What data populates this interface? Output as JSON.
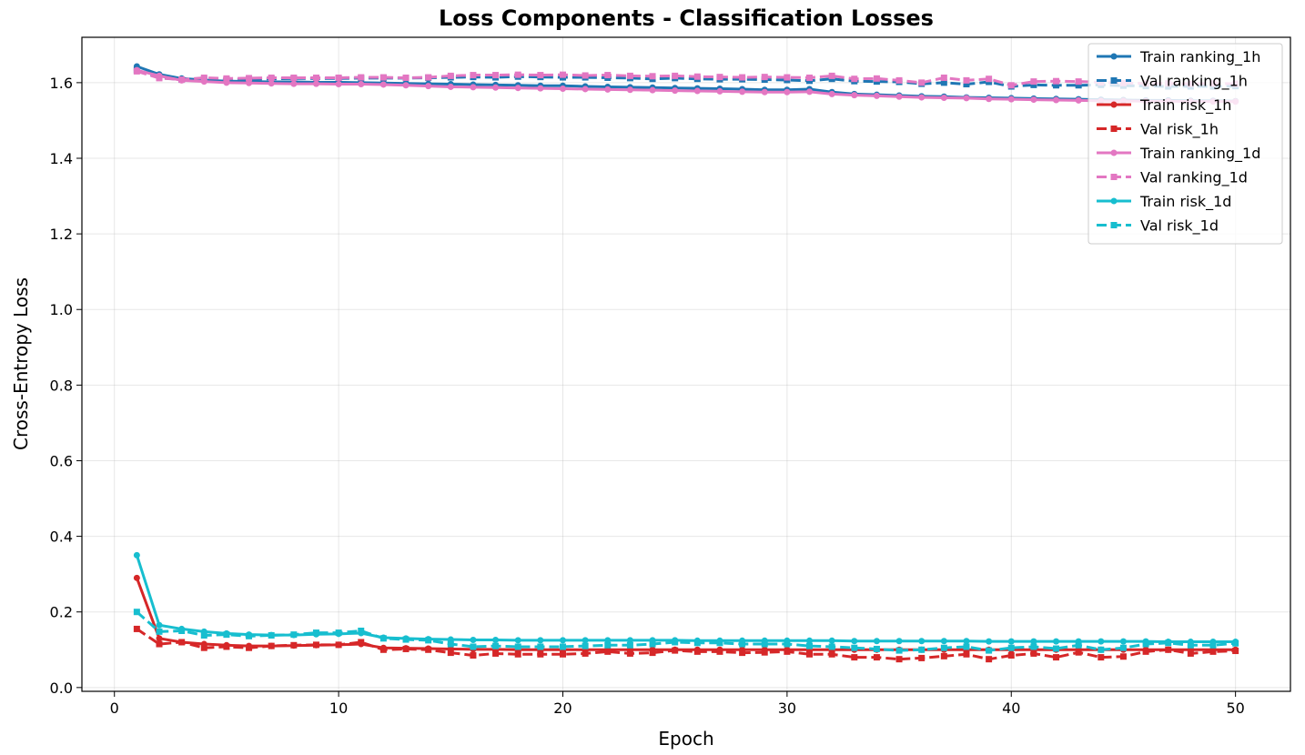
{
  "chart_data": {
    "type": "line",
    "title": "Loss Components - Classification Losses",
    "xlabel": "Epoch",
    "ylabel": "Cross-Entropy Loss",
    "xlim": [
      -1.45,
      52.45
    ],
    "ylim": [
      -0.01,
      1.72
    ],
    "xticks": [
      0,
      10,
      20,
      30,
      40,
      50
    ],
    "yticks": [
      0.0,
      0.2,
      0.4,
      0.6,
      0.8,
      1.0,
      1.2,
      1.4,
      1.6
    ],
    "ytick_labels": [
      "0.0",
      "0.2",
      "0.4",
      "0.6",
      "0.8",
      "1.0",
      "1.2",
      "1.4",
      "1.6"
    ],
    "grid": true,
    "legend_position": "top-right",
    "x": [
      1,
      2,
      3,
      4,
      5,
      6,
      7,
      8,
      9,
      10,
      11,
      12,
      13,
      14,
      15,
      16,
      17,
      18,
      19,
      20,
      21,
      22,
      23,
      24,
      25,
      26,
      27,
      28,
      29,
      30,
      31,
      32,
      33,
      34,
      35,
      36,
      37,
      38,
      39,
      40,
      41,
      42,
      43,
      44,
      45,
      46,
      47,
      48,
      49,
      50
    ],
    "series": [
      {
        "name": "Train ranking_1h",
        "color": "#1f77b4",
        "style": "solid",
        "marker": "circle",
        "values": [
          1.643,
          1.622,
          1.611,
          1.607,
          1.604,
          1.603,
          1.602,
          1.602,
          1.601,
          1.601,
          1.6,
          1.599,
          1.598,
          1.597,
          1.596,
          1.595,
          1.594,
          1.593,
          1.592,
          1.592,
          1.59,
          1.589,
          1.588,
          1.587,
          1.586,
          1.585,
          1.584,
          1.583,
          1.581,
          1.581,
          1.583,
          1.575,
          1.57,
          1.568,
          1.566,
          1.564,
          1.563,
          1.561,
          1.56,
          1.559,
          1.558,
          1.557,
          1.556,
          1.555,
          1.554,
          1.553,
          1.553,
          1.552,
          1.552,
          1.551
        ]
      },
      {
        "name": "Val ranking_1h",
        "color": "#1f77b4",
        "style": "dashed",
        "marker": "square",
        "values": [
          1.633,
          1.613,
          1.608,
          1.609,
          1.608,
          1.609,
          1.61,
          1.611,
          1.611,
          1.611,
          1.612,
          1.612,
          1.612,
          1.613,
          1.614,
          1.615,
          1.614,
          1.616,
          1.615,
          1.614,
          1.614,
          1.613,
          1.612,
          1.61,
          1.612,
          1.61,
          1.609,
          1.609,
          1.608,
          1.607,
          1.605,
          1.61,
          1.604,
          1.603,
          1.602,
          1.597,
          1.6,
          1.596,
          1.602,
          1.59,
          1.594,
          1.593,
          1.593,
          1.594,
          1.592,
          1.591,
          1.59,
          1.59,
          1.59,
          1.591
        ]
      },
      {
        "name": "Train risk_1h",
        "color": "#d62728",
        "style": "solid",
        "marker": "circle",
        "values": [
          0.29,
          0.13,
          0.12,
          0.115,
          0.112,
          0.11,
          0.11,
          0.111,
          0.112,
          0.113,
          0.115,
          0.105,
          0.104,
          0.103,
          0.102,
          0.101,
          0.101,
          0.1,
          0.1,
          0.1,
          0.1,
          0.1,
          0.1,
          0.1,
          0.1,
          0.1,
          0.1,
          0.1,
          0.1,
          0.1,
          0.1,
          0.1,
          0.1,
          0.1,
          0.1,
          0.1,
          0.1,
          0.1,
          0.1,
          0.1,
          0.1,
          0.1,
          0.1,
          0.1,
          0.1,
          0.1,
          0.1,
          0.1,
          0.1,
          0.1
        ]
      },
      {
        "name": "Val risk_1h",
        "color": "#d62728",
        "style": "dashed",
        "marker": "square",
        "values": [
          0.155,
          0.115,
          0.12,
          0.105,
          0.108,
          0.105,
          0.11,
          0.112,
          0.113,
          0.113,
          0.12,
          0.1,
          0.102,
          0.1,
          0.092,
          0.085,
          0.09,
          0.088,
          0.088,
          0.088,
          0.09,
          0.095,
          0.09,
          0.092,
          0.098,
          0.095,
          0.095,
          0.092,
          0.093,
          0.095,
          0.088,
          0.088,
          0.08,
          0.08,
          0.075,
          0.078,
          0.083,
          0.088,
          0.075,
          0.085,
          0.09,
          0.08,
          0.093,
          0.08,
          0.082,
          0.095,
          0.1,
          0.09,
          0.095,
          0.097
        ]
      },
      {
        "name": "Train ranking_1d",
        "color": "#e377c2",
        "style": "solid",
        "marker": "circle",
        "values": [
          1.633,
          1.618,
          1.606,
          1.603,
          1.6,
          1.599,
          1.598,
          1.597,
          1.597,
          1.596,
          1.596,
          1.595,
          1.593,
          1.591,
          1.589,
          1.588,
          1.587,
          1.586,
          1.585,
          1.584,
          1.583,
          1.582,
          1.581,
          1.58,
          1.579,
          1.578,
          1.577,
          1.576,
          1.575,
          1.575,
          1.576,
          1.57,
          1.567,
          1.565,
          1.563,
          1.561,
          1.56,
          1.559,
          1.557,
          1.556,
          1.555,
          1.554,
          1.553,
          1.552,
          1.552,
          1.551,
          1.551,
          1.55,
          1.55,
          1.55
        ]
      },
      {
        "name": "Val ranking_1d",
        "color": "#e377c2",
        "style": "dashed",
        "marker": "square",
        "values": [
          1.63,
          1.612,
          1.608,
          1.613,
          1.611,
          1.612,
          1.613,
          1.613,
          1.613,
          1.613,
          1.614,
          1.614,
          1.613,
          1.614,
          1.618,
          1.62,
          1.62,
          1.621,
          1.62,
          1.621,
          1.619,
          1.62,
          1.618,
          1.617,
          1.618,
          1.616,
          1.615,
          1.614,
          1.615,
          1.614,
          1.613,
          1.618,
          1.61,
          1.611,
          1.606,
          1.6,
          1.613,
          1.606,
          1.61,
          1.593,
          1.603,
          1.604,
          1.603,
          1.601,
          1.599,
          1.598,
          1.598,
          1.597,
          1.598,
          1.597
        ]
      },
      {
        "name": "Train risk_1d",
        "color": "#17becf",
        "style": "solid",
        "marker": "circle",
        "values": [
          0.35,
          0.165,
          0.155,
          0.148,
          0.143,
          0.14,
          0.139,
          0.139,
          0.141,
          0.142,
          0.144,
          0.132,
          0.13,
          0.128,
          0.127,
          0.126,
          0.126,
          0.125,
          0.125,
          0.125,
          0.125,
          0.125,
          0.125,
          0.125,
          0.125,
          0.124,
          0.124,
          0.124,
          0.124,
          0.124,
          0.124,
          0.124,
          0.123,
          0.123,
          0.123,
          0.123,
          0.123,
          0.123,
          0.122,
          0.122,
          0.122,
          0.122,
          0.122,
          0.122,
          0.122,
          0.122,
          0.121,
          0.121,
          0.121,
          0.121
        ]
      },
      {
        "name": "Val risk_1d",
        "color": "#17becf",
        "style": "dashed",
        "marker": "square",
        "values": [
          0.2,
          0.148,
          0.15,
          0.138,
          0.14,
          0.136,
          0.138,
          0.14,
          0.145,
          0.145,
          0.15,
          0.13,
          0.127,
          0.125,
          0.115,
          0.108,
          0.11,
          0.108,
          0.108,
          0.108,
          0.11,
          0.112,
          0.112,
          0.115,
          0.12,
          0.118,
          0.118,
          0.115,
          0.115,
          0.115,
          0.11,
          0.108,
          0.105,
          0.102,
          0.098,
          0.1,
          0.105,
          0.108,
          0.098,
          0.105,
          0.108,
          0.103,
          0.112,
          0.1,
          0.105,
          0.115,
          0.118,
          0.112,
          0.112,
          0.117
        ]
      }
    ]
  }
}
